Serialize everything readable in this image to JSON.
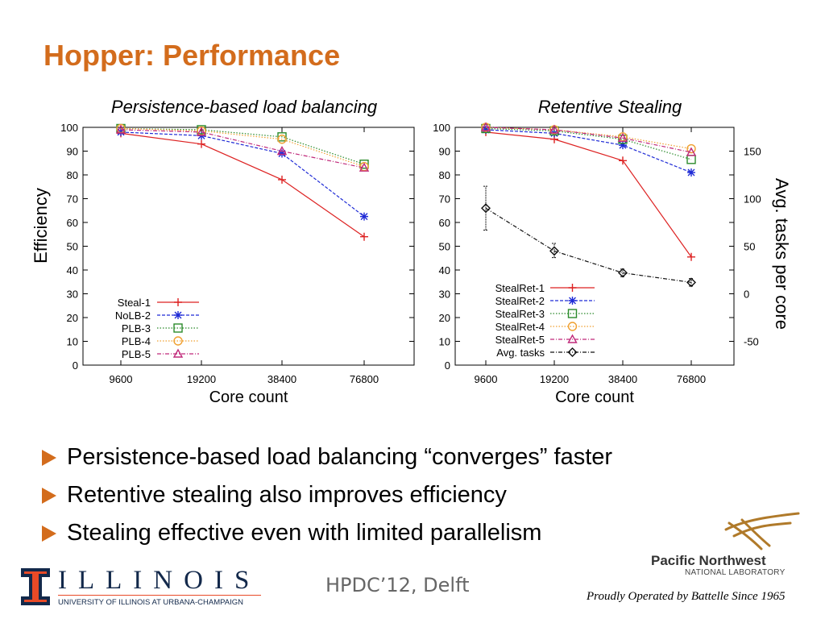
{
  "slide": {
    "title": "Hopper: Performance",
    "bullets": [
      "Persistence-based load balancing “converges” faster",
      "Retentive stealing also improves efficiency",
      "Stealing effective even with limited parallelism"
    ],
    "footer": "HPDC’12, Delft",
    "illinois": {
      "wordmark": "ILLINOIS",
      "subtitle": "UNIVERSITY OF ILLINOIS AT URBANA-CHAMPAIGN"
    },
    "pnnl": {
      "name": "Pacific Northwest",
      "lab": "NATIONAL LABORATORY"
    },
    "battelle": "Proudly Operated by Battelle Since 1965"
  },
  "chart_data": [
    {
      "type": "line",
      "title": "Persistence-based load balancing",
      "xlabel": "Core count",
      "ylabel": "Efficiency",
      "categories": [
        "9600",
        "19200",
        "38400",
        "76800"
      ],
      "ylim": [
        0,
        100
      ],
      "yticks": [
        0,
        10,
        20,
        30,
        40,
        50,
        60,
        70,
        80,
        90,
        100
      ],
      "legend_position": "bottom-left",
      "series": [
        {
          "name": "Steal-1",
          "color": "#dd2222",
          "marker": "plus",
          "dash": "",
          "values": [
            97.5,
            93,
            78,
            54
          ]
        },
        {
          "name": "NoLB-2",
          "color": "#1f2bd6",
          "marker": "asterisk",
          "dash": "4,2",
          "values": [
            98,
            96.5,
            89,
            62.5
          ]
        },
        {
          "name": "PLB-3",
          "color": "#2a8a2a",
          "marker": "square",
          "dash": "1.5,2",
          "values": [
            99.5,
            99,
            96,
            84.5
          ]
        },
        {
          "name": "PLB-4",
          "color": "#f0a030",
          "marker": "circle",
          "dash": "1.5,2",
          "values": [
            99.5,
            98.5,
            95,
            83.5
          ]
        },
        {
          "name": "PLB-5",
          "color": "#c0297a",
          "marker": "triangle",
          "dash": "5,2,1,2",
          "values": [
            99,
            98,
            90,
            83
          ]
        }
      ]
    },
    {
      "type": "line",
      "title": "Retentive Stealing",
      "xlabel": "Core count",
      "ylabel": "",
      "y2label": "Avg. tasks per core",
      "categories": [
        "9600",
        "19200",
        "38400",
        "76800"
      ],
      "ylim": [
        0,
        100
      ],
      "yticks": [
        0,
        10,
        20,
        30,
        40,
        50,
        60,
        70,
        80,
        90,
        100
      ],
      "y2lim": [
        -75,
        175
      ],
      "y2ticks": [
        -50,
        0,
        50,
        100,
        150
      ],
      "legend_position": "bottom-left",
      "series": [
        {
          "name": "StealRet-1",
          "color": "#dd2222",
          "marker": "plus",
          "dash": "",
          "values": [
            98,
            95,
            86,
            45.5
          ]
        },
        {
          "name": "StealRet-2",
          "color": "#1f2bd6",
          "marker": "asterisk",
          "dash": "4,2",
          "values": [
            99,
            97.5,
            92.5,
            81
          ]
        },
        {
          "name": "StealRet-3",
          "color": "#2a8a2a",
          "marker": "square",
          "dash": "1.5,2",
          "values": [
            99.5,
            98.5,
            95,
            86.5
          ]
        },
        {
          "name": "StealRet-4",
          "color": "#f0a030",
          "marker": "circle",
          "dash": "1.5,2",
          "values": [
            100,
            99,
            96,
            91
          ]
        },
        {
          "name": "StealRet-5",
          "color": "#c0297a",
          "marker": "triangle",
          "dash": "5,2,1,2",
          "values": [
            100,
            99,
            95.5,
            89.5
          ]
        },
        {
          "name": "Avg. tasks",
          "color": "#111111",
          "marker": "diamond",
          "dash": "5,2,1,2",
          "axis": "y2",
          "values": [
            90,
            45,
            22,
            12
          ],
          "err_low": [
            67,
            38,
            18,
            8
          ],
          "err_high": [
            113,
            53,
            26,
            16
          ]
        }
      ]
    }
  ]
}
